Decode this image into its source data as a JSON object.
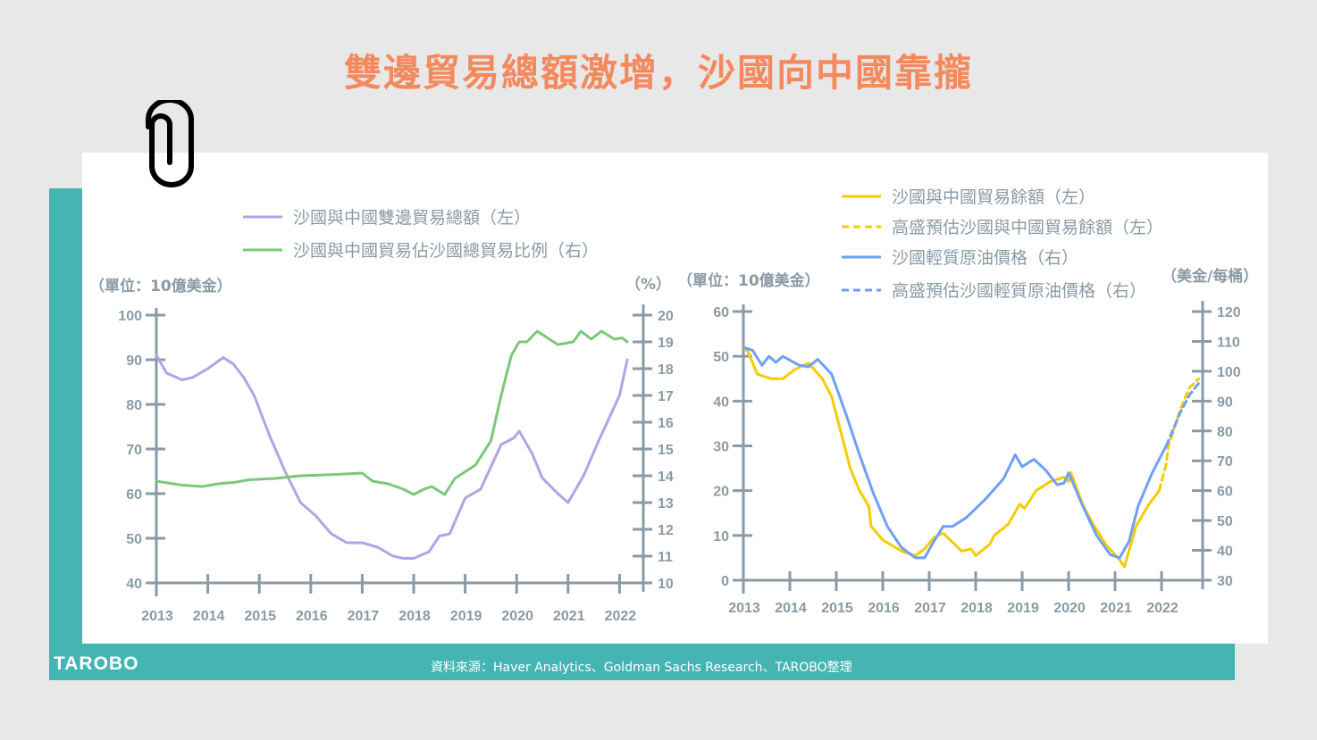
{
  "title": "雙邊貿易總額激增，沙國向中國靠攏",
  "logo": "TAROBO",
  "source": "資料來源：Haver Analytics、Goldman Sachs Research、TAROBO整理",
  "colors": {
    "title": "#f4895e",
    "teal": "#45b5b4",
    "axis": "#8a9aa6",
    "purple": "#b3a3e6",
    "green": "#7cc77a",
    "yellow": "#f5cc00",
    "blue": "#6fa0f5"
  },
  "icons": {
    "paperclip": "paperclip-icon"
  },
  "chart_data": [
    {
      "type": "line",
      "left_unit": "（單位：10億美金）",
      "right_unit": "（%）",
      "xticks": [
        "2013",
        "2014",
        "2015",
        "2016",
        "2017",
        "2018",
        "2019",
        "2020",
        "2021",
        "2022"
      ],
      "ylim_left": [
        40,
        100
      ],
      "yticks_left": [
        "40",
        "50",
        "60",
        "70",
        "80",
        "90",
        "100"
      ],
      "ylim_right": [
        10,
        20
      ],
      "yticks_right": [
        "10",
        "11",
        "12",
        "13",
        "14",
        "15",
        "16",
        "17",
        "18",
        "19",
        "20"
      ],
      "legend_position": "top",
      "series": [
        {
          "name": "沙國與中國雙邊貿易總額（左）",
          "axis": "left",
          "color": "#b3a3e6",
          "x": [
            2013.0,
            2013.2,
            2013.5,
            2013.7,
            2014.0,
            2014.3,
            2014.5,
            2014.7,
            2014.9,
            2015.2,
            2015.5,
            2015.8,
            2016.1,
            2016.4,
            2016.7,
            2017.0,
            2017.3,
            2017.6,
            2017.8,
            2018.0,
            2018.3,
            2018.5,
            2018.7,
            2019.0,
            2019.3,
            2019.5,
            2019.7,
            2019.95,
            2020.05,
            2020.3,
            2020.5,
            2020.8,
            2021.0,
            2021.3,
            2021.6,
            2022.0,
            2022.15
          ],
          "y": [
            91,
            87,
            85.5,
            86,
            88,
            90.5,
            89,
            86,
            82,
            73,
            65,
            58,
            55,
            51,
            49,
            49,
            48,
            46,
            45.5,
            45.5,
            47,
            50.5,
            51,
            59,
            61,
            66,
            71,
            72.5,
            74,
            69,
            63.5,
            60,
            58,
            64,
            72,
            82,
            90
          ]
        },
        {
          "name": "沙國與中國貿易佔沙國總貿易比例（右）",
          "axis": "right",
          "color": "#7cc77a",
          "x": [
            2013.0,
            2013.5,
            2013.9,
            2014.2,
            2014.5,
            2014.8,
            2015.3,
            2015.8,
            2016.5,
            2017.0,
            2017.2,
            2017.5,
            2017.8,
            2018.0,
            2018.2,
            2018.35,
            2018.6,
            2018.8,
            2019.2,
            2019.5,
            2019.7,
            2019.9,
            2020.05,
            2020.2,
            2020.4,
            2020.8,
            2021.1,
            2021.25,
            2021.45,
            2021.65,
            2021.9,
            2022.05,
            2022.15
          ],
          "y": [
            13.8,
            13.65,
            13.6,
            13.7,
            13.75,
            13.85,
            13.9,
            14.0,
            14.05,
            14.1,
            13.8,
            13.7,
            13.5,
            13.3,
            13.5,
            13.6,
            13.3,
            13.9,
            14.4,
            15.3,
            17.0,
            18.5,
            19.0,
            19.0,
            19.4,
            18.9,
            19.0,
            19.4,
            19.1,
            19.4,
            19.1,
            19.15,
            19.0
          ]
        }
      ]
    },
    {
      "type": "line",
      "left_unit": "（單位：10億美金）",
      "right_unit": "（美金/每桶）",
      "xticks": [
        "2013",
        "2014",
        "2015",
        "2016",
        "2017",
        "2018",
        "2019",
        "2020",
        "2021",
        "2022"
      ],
      "ylim_left": [
        0,
        60
      ],
      "yticks_left": [
        "0",
        "10",
        "20",
        "30",
        "40",
        "50",
        "60"
      ],
      "ylim_right": [
        30,
        120
      ],
      "yticks_right": [
        "30",
        "40",
        "50",
        "60",
        "70",
        "80",
        "90",
        "100",
        "110",
        "120"
      ],
      "legend_position": "top-right",
      "series": [
        {
          "name": "沙國與中國貿易餘額（左）",
          "axis": "left",
          "color": "#f5cc00",
          "dashed": false,
          "x": [
            2013.0,
            2013.1,
            2013.3,
            2013.6,
            2013.85,
            2014.1,
            2014.4,
            2014.7,
            2014.9,
            2015.1,
            2015.3,
            2015.5,
            2015.7,
            2015.75,
            2016.0,
            2016.4,
            2016.7,
            2016.9,
            2017.1,
            2017.3,
            2017.5,
            2017.7,
            2017.9,
            2018.0,
            2018.3,
            2018.4,
            2018.7,
            2018.95,
            2019.05,
            2019.3,
            2019.6,
            2019.9,
            2020.0,
            2020.05,
            2020.3,
            2020.5,
            2020.8,
            2021.1,
            2021.2,
            2021.45,
            2021.7,
            2021.95
          ],
          "y": [
            52,
            51,
            46,
            45,
            45,
            47,
            48.5,
            45,
            41,
            33,
            25,
            20,
            16.5,
            12,
            9,
            6.5,
            5.5,
            7,
            9.5,
            10.5,
            8.5,
            6.5,
            7,
            5.5,
            8,
            10,
            12.5,
            17,
            16,
            20,
            22,
            23,
            22,
            24,
            17,
            13,
            8,
            4.5,
            3,
            12,
            16.5,
            20
          ]
        },
        {
          "name": "高盛預估沙國與中國貿易餘額（左）",
          "axis": "left",
          "color": "#f5cc00",
          "dashed": true,
          "x": [
            2021.95,
            2022.1,
            2022.15,
            2022.4,
            2022.6,
            2022.8
          ],
          "y": [
            20,
            26,
            30,
            38,
            43,
            45
          ]
        },
        {
          "name": "沙國輕質原油價格（右）",
          "axis": "right",
          "color": "#6fa0f5",
          "dashed": false,
          "x": [
            2013.0,
            2013.2,
            2013.4,
            2013.55,
            2013.7,
            2013.85,
            2014.2,
            2014.4,
            2014.6,
            2014.9,
            2015.2,
            2015.5,
            2015.8,
            2016.1,
            2016.4,
            2016.7,
            2016.9,
            2017.1,
            2017.3,
            2017.5,
            2017.8,
            2018.2,
            2018.6,
            2018.85,
            2019.0,
            2019.25,
            2019.5,
            2019.75,
            2019.9,
            2020.0,
            2020.3,
            2020.6,
            2020.9,
            2021.1,
            2021.3,
            2021.5,
            2021.8,
            2022.1
          ],
          "y": [
            108,
            107,
            102,
            105,
            103,
            105,
            102,
            101.5,
            104,
            99,
            86,
            72,
            59,
            48,
            41,
            37.5,
            37.5,
            43,
            48,
            48,
            51,
            57,
            64,
            72,
            68,
            70.5,
            67,
            62,
            62.5,
            66,
            55,
            45,
            38.5,
            37.5,
            43,
            55,
            66,
            75
          ]
        },
        {
          "name": "高盛預估沙國輕質原油價格（右）",
          "axis": "right",
          "color": "#6fa0f5",
          "dashed": true,
          "x": [
            2022.1,
            2022.4,
            2022.6,
            2022.85
          ],
          "y": [
            75,
            86,
            92,
            97
          ]
        }
      ]
    }
  ]
}
